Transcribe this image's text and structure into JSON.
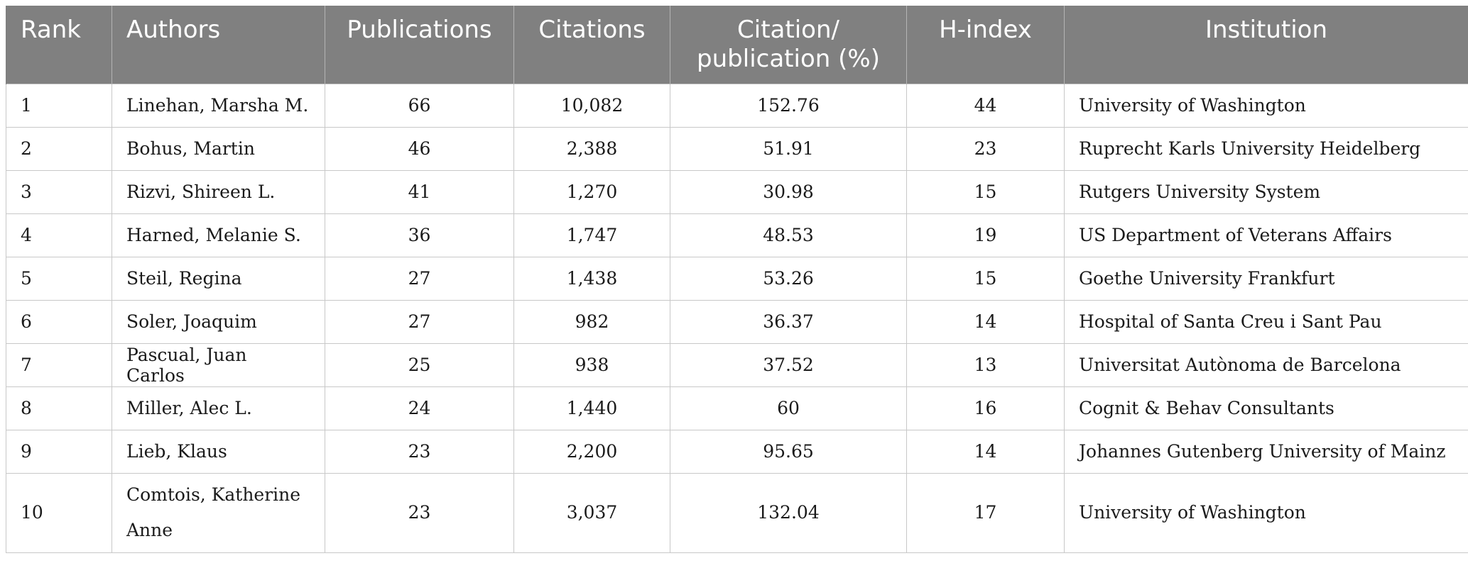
{
  "headers": [
    "Rank",
    "Authors",
    "Publications",
    "Citations",
    "Citation/ publication (%)",
    "H-index",
    "Institution"
  ],
  "header_citation_line1": "Citation/",
  "header_citation_line2": "publication (%)",
  "rows": [
    {
      "rank": "1",
      "author": "Linehan, Marsha M.",
      "publications": "66",
      "citations": "10,082",
      "cpp": "152.76",
      "hindex": "44",
      "institution": "University of Washington"
    },
    {
      "rank": "2",
      "author": "Bohus, Martin",
      "publications": "46",
      "citations": "2,388",
      "cpp": "51.91",
      "hindex": "23",
      "institution": "Ruprecht Karls University Heidelberg"
    },
    {
      "rank": "3",
      "author": "Rizvi, Shireen L.",
      "publications": "41",
      "citations": "1,270",
      "cpp": "30.98",
      "hindex": "15",
      "institution": "Rutgers University System"
    },
    {
      "rank": "4",
      "author": "Harned, Melanie S.",
      "publications": "36",
      "citations": "1,747",
      "cpp": "48.53",
      "hindex": "19",
      "institution": "US Department of Veterans Affairs"
    },
    {
      "rank": "5",
      "author": "Steil, Regina",
      "publications": "27",
      "citations": "1,438",
      "cpp": "53.26",
      "hindex": "15",
      "institution": "Goethe University Frankfurt"
    },
    {
      "rank": "6",
      "author": "Soler, Joaquim",
      "publications": "27",
      "citations": "982",
      "cpp": "36.37",
      "hindex": "14",
      "institution": "Hospital of Santa Creu i Sant Pau"
    },
    {
      "rank": "7",
      "author": "Pascual, Juan Carlos",
      "publications": "25",
      "citations": "938",
      "cpp": "37.52",
      "hindex": "13",
      "institution": "Universitat Autònoma de Barcelona"
    },
    {
      "rank": "8",
      "author": "Miller, Alec L.",
      "publications": "24",
      "citations": "1,440",
      "cpp": "60",
      "hindex": "16",
      "institution": "Cognit & Behav Consultants"
    },
    {
      "rank": "9",
      "author": "Lieb, Klaus",
      "publications": "23",
      "citations": "2,200",
      "cpp": "95.65",
      "hindex": "14",
      "institution": "Johannes Gutenberg University of Mainz"
    },
    {
      "rank": "10",
      "author": "Comtois, Katherine Anne",
      "author_line1": "Comtois, Katherine",
      "author_line2": "Anne",
      "publications": "23",
      "citations": "3,037",
      "cpp": "132.04",
      "hindex": "17",
      "institution": "University of Washington"
    }
  ]
}
